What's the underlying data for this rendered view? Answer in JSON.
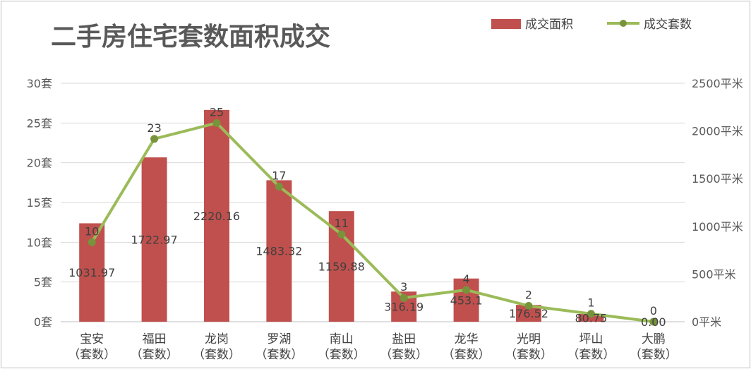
{
  "chart_data": {
    "type": "bar",
    "title": "二手房住宅套数面积成交",
    "categories": [
      "宝安",
      "福田",
      "龙岗",
      "罗湖",
      "南山",
      "盐田",
      "龙华",
      "光明",
      "坪山",
      "大鹏"
    ],
    "category_suffix": "（套数）",
    "series": [
      {
        "name": "成交面积",
        "type": "bar",
        "axis": "right",
        "color": "#c0504d",
        "values": [
          1031.97,
          1722.97,
          2220.16,
          1483.32,
          1159.88,
          316.19,
          453.1,
          176.52,
          80.75,
          0.0
        ],
        "labels": [
          "1031.97",
          "1722.97",
          "2220.16",
          "1483.32",
          "1159.88",
          "316.19",
          "453.1",
          "176.52",
          "80.75",
          "0.00"
        ]
      },
      {
        "name": "成交套数",
        "type": "line",
        "axis": "left",
        "color": "#9bbb59",
        "values": [
          10,
          23,
          25,
          17,
          11,
          3,
          4,
          2,
          1,
          0
        ],
        "labels": [
          "10",
          "23",
          "25",
          "17",
          "11",
          "3",
          "4",
          "2",
          "1",
          "0"
        ]
      }
    ],
    "y_left": {
      "min": 0,
      "max": 30,
      "ticks": [
        0,
        5,
        10,
        15,
        20,
        25,
        30
      ],
      "tick_labels": [
        "0套",
        "5套",
        "10套",
        "15套",
        "20套",
        "25套",
        "30套"
      ]
    },
    "y_right": {
      "min": 0,
      "max": 2500,
      "ticks": [
        0,
        500,
        1000,
        1500,
        2000,
        2500
      ],
      "tick_labels": [
        "0平米",
        "500平米",
        "1000平米",
        "1500平米",
        "2000平米",
        "2500平米"
      ]
    },
    "grid": true,
    "legend_position": "top-right"
  }
}
